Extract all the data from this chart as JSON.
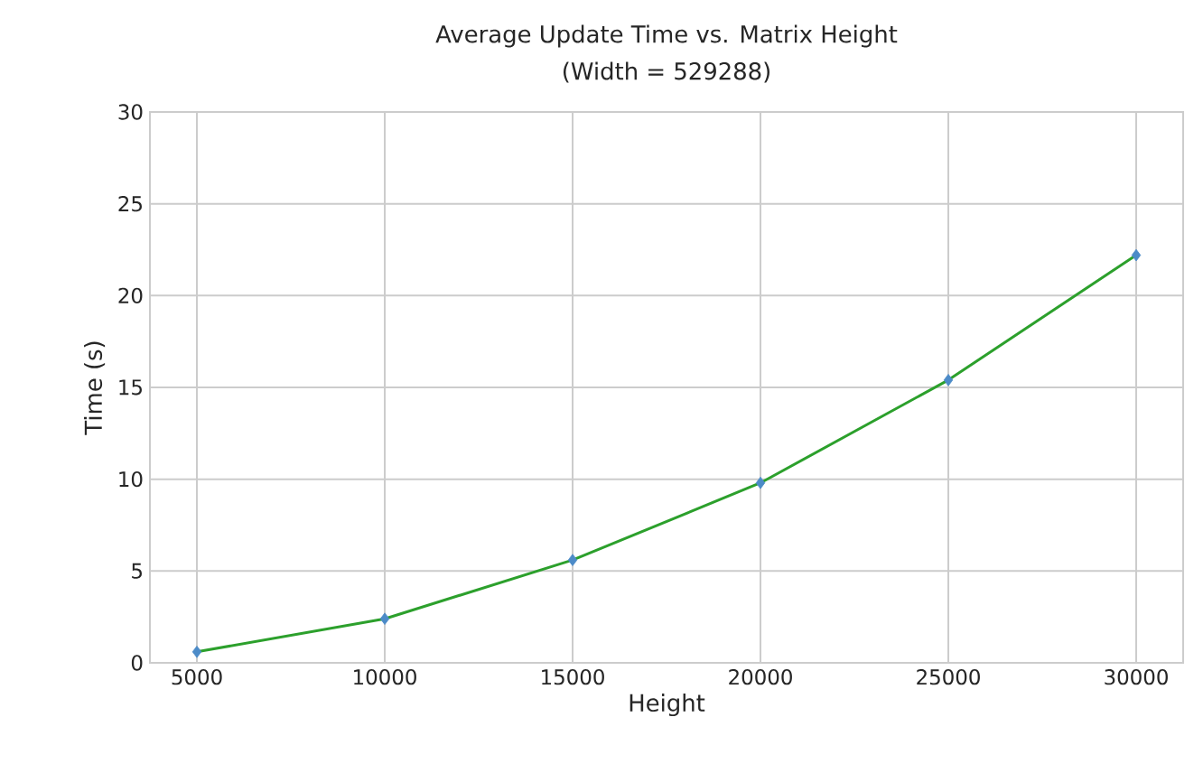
{
  "chart_data": {
    "type": "line",
    "title": "Average Update Time vs. Matrix Height",
    "subtitle": "(Width = 529288)",
    "xlabel": "Height",
    "ylabel": "Time (s)",
    "x": [
      5000,
      10000,
      15000,
      20000,
      25000,
      30000
    ],
    "series": [
      {
        "color": "#2ca02c",
        "colors": [
          "#4c8bc8",
          "#4c8bc8",
          "#4c8bc8",
          "#4c8bc8",
          "#4c8bc8",
          "#4c8bc8"
        ],
        "values": [
          0.6,
          2.4,
          5.6,
          9.8,
          15.4,
          22.2
        ]
      }
    ],
    "xlim": [
      3750,
      31250
    ],
    "ylim": [
      0,
      30
    ],
    "xticks": [
      5000,
      10000,
      15000,
      20000,
      25000,
      30000
    ],
    "yticks": [
      0,
      5,
      10,
      15,
      20,
      25,
      30
    ],
    "grid": true,
    "marker": "diamond",
    "line_style": "solid"
  }
}
